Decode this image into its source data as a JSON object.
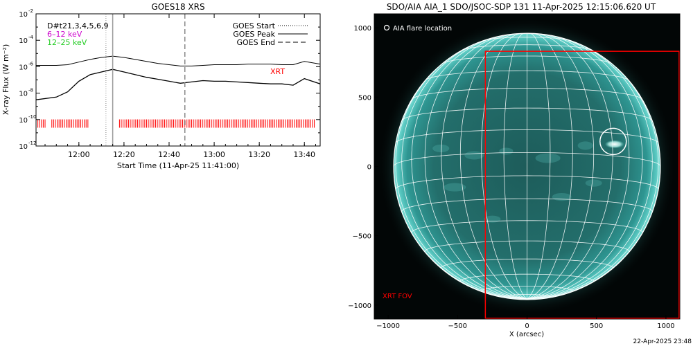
{
  "chart_data": [
    {
      "type": "line",
      "title": "GOES18 XRS",
      "xlabel": "Start Time (11-Apr-25 11:41:00)",
      "ylabel": "X-ray Flux (W m⁻²)",
      "yscale": "log",
      "ylim": [
        1e-12,
        0.01
      ],
      "yticks": [
        {
          "value": -2,
          "label_base": "10",
          "label_exp": "-2"
        },
        {
          "value": -4,
          "label_base": "10",
          "label_exp": "-4"
        },
        {
          "value": -6,
          "label_base": "10",
          "label_exp": "-6"
        },
        {
          "value": -8,
          "label_base": "10",
          "label_exp": "-8"
        },
        {
          "value": -10,
          "label_base": "10",
          "label_exp": "-10"
        },
        {
          "value": -12,
          "label_base": "10",
          "label_exp": "-12"
        }
      ],
      "xlim": [
        "11:41",
        "13:47"
      ],
      "xticks": [
        "12:00",
        "12:20",
        "12:40",
        "13:00",
        "13:20",
        "13:40"
      ],
      "legend_top_left": [
        "D#t21,3,4,5,6,9",
        "6–12 keV",
        "12–25 keV"
      ],
      "legend_top_right": [
        "GOES Start",
        "GOES Peak",
        "GOES End"
      ],
      "annotations": [
        "XRT"
      ],
      "markers": {
        "goes_start": "12:12",
        "goes_peak": "12:15",
        "goes_end": "12:47"
      },
      "series": [
        {
          "name": "6–12 keV",
          "color": "#000000",
          "x": [
            "11:41",
            "11:50",
            "11:55",
            "12:00",
            "12:05",
            "12:10",
            "12:15",
            "12:20",
            "12:25",
            "12:30",
            "12:35",
            "12:40",
            "12:45",
            "12:50",
            "12:55",
            "13:00",
            "13:05",
            "13:10",
            "13:15",
            "13:20",
            "13:25",
            "13:30",
            "13:35",
            "13:40",
            "13:47"
          ],
          "log_y": [
            -5.9,
            -5.9,
            -5.85,
            -5.65,
            -5.45,
            -5.3,
            -5.2,
            -5.3,
            -5.45,
            -5.6,
            -5.75,
            -5.85,
            -5.95,
            -5.95,
            -5.9,
            -5.85,
            -5.85,
            -5.85,
            -5.8,
            -5.8,
            -5.8,
            -5.85,
            -5.85,
            -5.6,
            -5.8
          ]
        },
        {
          "name": "12–25 keV",
          "color": "#000000",
          "x": [
            "11:41",
            "11:50",
            "11:55",
            "12:00",
            "12:05",
            "12:10",
            "12:15",
            "12:20",
            "12:25",
            "12:30",
            "12:35",
            "12:40",
            "12:45",
            "12:50",
            "12:55",
            "13:00",
            "13:05",
            "13:10",
            "13:15",
            "13:20",
            "13:25",
            "13:30",
            "13:35",
            "13:40",
            "13:47"
          ],
          "log_y": [
            -8.5,
            -8.3,
            -7.9,
            -7.1,
            -6.6,
            -6.4,
            -6.2,
            -6.4,
            -6.6,
            -6.8,
            -6.95,
            -7.1,
            -7.25,
            -7.15,
            -7.05,
            -7.1,
            -7.1,
            -7.15,
            -7.2,
            -7.25,
            -7.3,
            -7.3,
            -7.4,
            -6.9,
            -7.3
          ]
        }
      ],
      "xrt_bar_ranges": [
        [
          "11:41",
          "11:45"
        ],
        [
          "11:48",
          "12:04"
        ],
        [
          "12:18",
          "13:45"
        ]
      ],
      "xrt_level": -10.3,
      "xrt_color": "#ff0000"
    },
    {
      "type": "image",
      "title": "SDO/AIA AIA_1 SDO/JSOC-SDP 131 11-Apr-2025 12:15:06.620 UT",
      "xlabel": "X (arcsec)",
      "ylabel": "",
      "xlim": [
        -1100,
        1100
      ],
      "ylim": [
        -1100,
        1100
      ],
      "xticks": [
        "−1000",
        "−500",
        "0",
        "500",
        "1000"
      ],
      "yticks": [
        "1000",
        "500",
        "0",
        "−500",
        "−1000"
      ],
      "legend": "AIA flare location",
      "annotation": "XRT FOV",
      "flare_location": [
        620,
        180
      ],
      "xrt_fov": {
        "x0": -300,
        "x1": 1100,
        "y0": -1100,
        "y1": 830
      },
      "solar_radius_arcsec": 960,
      "disk_color": "#2a8c8a",
      "grid_color": "#ffffff",
      "fov_color": "#ff0000"
    }
  ],
  "footer_timestamp": "22-Apr-2025 23:48"
}
